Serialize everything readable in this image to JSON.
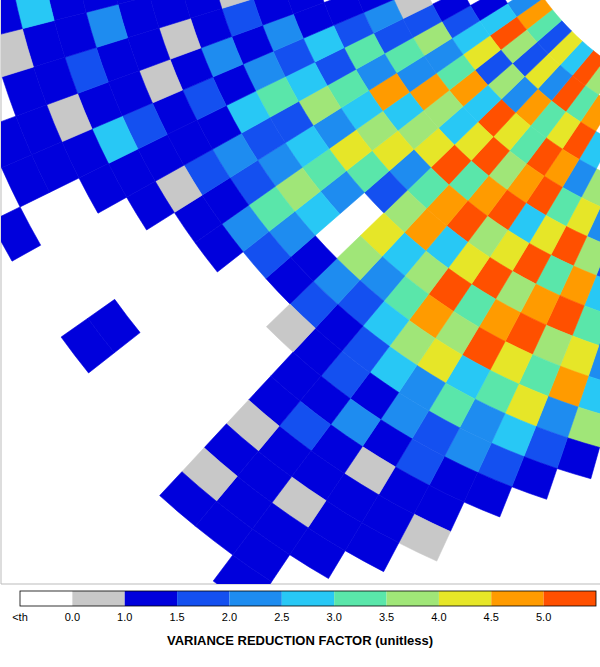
{
  "chart_data": {
    "type": "heatmap",
    "xlim": [
      -117,
      -26
    ],
    "ylim": [
      -115,
      -25
    ],
    "tick_labels": false,
    "cells": {
      "azimuths": [
        191,
        194,
        197,
        200,
        203,
        206,
        209,
        212,
        215,
        218,
        221,
        224,
        227,
        230,
        233,
        236,
        239,
        242,
        245,
        248,
        251,
        254,
        257,
        260
      ],
      "ranges": [
        45,
        50,
        55,
        60,
        65,
        70,
        75,
        80,
        85,
        90,
        95,
        100,
        105,
        110,
        115,
        120,
        125,
        130,
        135,
        140
      ],
      "values": [
        [
          null,
          null,
          null,
          null,
          null,
          null,
          null,
          null,
          3.7,
          5.3,
          2.7,
          4.2,
          1.7,
          3.2,
          4.7,
          2.2,
          null,
          null,
          null,
          null,
          null,
          null,
          null,
          null
        ],
        [
          null,
          null,
          null,
          null,
          null,
          null,
          null,
          4.7,
          3.2,
          5.3,
          2.2,
          4.2,
          1.7,
          3.7,
          5.3,
          2.7,
          1.2,
          null,
          null,
          null,
          null,
          null,
          null,
          null
        ],
        [
          null,
          null,
          null,
          null,
          null,
          null,
          2.7,
          5.3,
          4.2,
          3.2,
          4.7,
          2.2,
          3.7,
          1.7,
          4.2,
          2.7,
          1.7,
          1.2,
          null,
          null,
          null,
          null,
          null,
          null
        ],
        [
          null,
          null,
          null,
          null,
          null,
          3.7,
          2.2,
          4.7,
          5.3,
          3.2,
          4.2,
          5.3,
          2.7,
          4.7,
          3.2,
          2.2,
          3.7,
          1.7,
          0.5,
          null,
          null,
          null,
          null,
          null
        ],
        [
          null,
          null,
          null,
          null,
          2.2,
          4.2,
          3.2,
          5.3,
          4.7,
          3.7,
          5.3,
          4.2,
          2.7,
          3.7,
          4.7,
          2.2,
          3.2,
          1.7,
          2.2,
          1.2,
          null,
          null,
          null,
          null
        ],
        [
          null,
          null,
          null,
          1.7,
          3.7,
          5.3,
          4.2,
          2.7,
          5.3,
          4.7,
          3.2,
          5.3,
          4.2,
          3.7,
          2.7,
          4.7,
          2.2,
          3.2,
          1.7,
          1.2,
          null,
          null,
          null,
          null
        ],
        [
          null,
          null,
          null,
          2.7,
          4.7,
          3.2,
          5.3,
          4.2,
          3.7,
          5.3,
          4.7,
          3.2,
          2.2,
          4.2,
          3.7,
          2.7,
          3.2,
          1.7,
          2.7,
          1.2,
          1.2,
          null,
          null,
          null
        ],
        [
          null,
          null,
          1.7,
          3.2,
          5.3,
          4.7,
          3.7,
          5.3,
          4.2,
          2.7,
          4.7,
          3.7,
          1.7,
          3.2,
          4.2,
          2.2,
          3.7,
          2.7,
          1.7,
          2.2,
          1.2,
          null,
          null,
          null
        ],
        [
          null,
          null,
          2.2,
          4.2,
          3.7,
          5.3,
          4.7,
          3.2,
          5.3,
          3.7,
          2.7,
          4.2,
          null,
          2.2,
          3.2,
          2.7,
          1.7,
          3.2,
          2.2,
          1.2,
          1.7,
          0.5,
          null,
          null
        ],
        [
          null,
          1.2,
          2.7,
          4.7,
          3.2,
          4.2,
          5.3,
          3.7,
          4.7,
          3.2,
          2.2,
          3.7,
          null,
          2.7,
          3.7,
          2.2,
          1.7,
          2.7,
          1.2,
          2.2,
          1.2,
          1.2,
          null,
          null
        ],
        [
          null,
          1.7,
          3.7,
          2.2,
          4.2,
          3.2,
          2.7,
          4.2,
          3.7,
          2.7,
          1.7,
          2.2,
          1.2,
          2.2,
          3.2,
          1.7,
          2.2,
          1.2,
          1.7,
          1.2,
          0.5,
          1.2,
          null,
          null
        ],
        [
          null,
          null,
          1.2,
          1.7,
          2.7,
          2.2,
          3.2,
          2.2,
          2.7,
          1.7,
          1.2,
          1.7,
          1.2,
          1.7,
          2.2,
          1.2,
          1.7,
          1.2,
          1.2,
          0.5,
          1.2,
          1.2,
          1.2,
          null
        ],
        [
          null,
          null,
          null,
          1.2,
          1.7,
          2.2,
          1.7,
          2.2,
          1.2,
          1.7,
          1.2,
          0.5,
          null,
          null,
          1.2,
          1.2,
          0.5,
          1.2,
          1.7,
          1.2,
          1.2,
          2.2,
          1.2,
          null
        ],
        [
          null,
          null,
          null,
          null,
          1.2,
          1.2,
          1.7,
          1.2,
          2.2,
          1.2,
          1.2,
          null,
          null,
          null,
          null,
          null,
          1.2,
          1.2,
          2.7,
          1.2,
          1.7,
          1.2,
          1.2,
          null
        ],
        [
          null,
          null,
          null,
          null,
          null,
          1.2,
          1.2,
          0.5,
          1.2,
          1.7,
          1.2,
          null,
          null,
          null,
          null,
          null,
          null,
          1.2,
          1.2,
          0.5,
          1.2,
          1.2,
          2.7,
          null
        ],
        [
          null,
          null,
          null,
          null,
          null,
          0.5,
          1.2,
          1.2,
          1.2,
          1.2,
          0.5,
          null,
          null,
          null,
          null,
          null,
          null,
          null,
          1.2,
          1.2,
          1.2,
          0.5,
          1.2,
          null
        ],
        [
          null,
          null,
          null,
          null,
          null,
          null,
          1.2,
          1.2,
          0.5,
          1.2,
          1.2,
          null,
          null,
          null,
          1.2,
          null,
          null,
          null,
          1.2,
          1.2,
          null,
          null,
          null,
          null
        ],
        [
          null,
          null,
          null,
          null,
          null,
          null,
          null,
          1.2,
          1.2,
          1.2,
          0.5,
          null,
          null,
          null,
          1.2,
          null,
          null,
          1.2,
          null,
          null,
          null,
          null,
          null,
          null
        ],
        [
          null,
          null,
          null,
          null,
          null,
          null,
          null,
          null,
          1.2,
          1.2,
          1.2,
          null,
          null,
          null,
          null,
          null,
          null,
          null,
          null,
          null,
          null,
          null,
          null,
          null
        ],
        [
          null,
          null,
          null,
          null,
          null,
          null,
          null,
          null,
          1.2,
          null,
          null,
          null,
          null,
          null,
          null,
          null,
          null,
          null,
          null,
          null,
          null,
          null,
          null,
          null
        ]
      ]
    },
    "colorbar": {
      "title": "VARIANCE REDUCTION FACTOR (unitless)",
      "below_threshold": {
        "label": "<th",
        "color": "#ffffff"
      },
      "ticks": [
        {
          "value": 0,
          "label": "0.0"
        },
        {
          "value": 1,
          "label": "1.0"
        },
        1.5,
        {
          "value": 2,
          "label": "2.0"
        },
        2.5,
        {
          "value": 3,
          "label": "3.0"
        },
        3.5,
        {
          "value": 4,
          "label": "4.0"
        },
        4.5,
        {
          "value": 5,
          "label": "5.0"
        }
      ],
      "colors": [
        "#c8c8c8",
        "#0000dc",
        "#1450f0",
        "#1e8cf0",
        "#28c8f5",
        "#5ae6aa",
        "#a0e678",
        "#e6e628",
        "#ff9b00",
        "#ff5000"
      ]
    }
  }
}
